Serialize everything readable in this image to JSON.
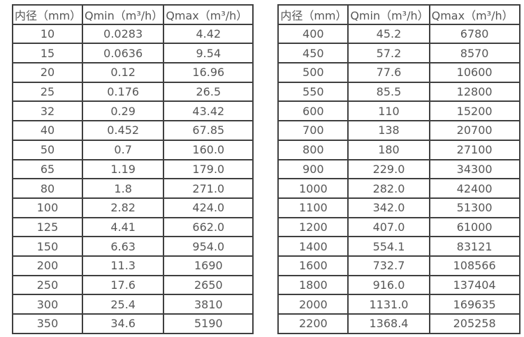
{
  "colors": {
    "background": "#ffffff",
    "border": "#3f3f3f",
    "text": "#575757"
  },
  "tables": [
    {
      "name": "flow-table-small-diameters",
      "headers": [
        "内径（mm）",
        "Qmin（m³/h）",
        "Qmax（m³/h）"
      ],
      "rows": [
        [
          "10",
          "0.0283",
          "4.42"
        ],
        [
          "15",
          "0.0636",
          "9.54"
        ],
        [
          "20",
          "0.12",
          "16.96"
        ],
        [
          "25",
          "0.176",
          "26.5"
        ],
        [
          "32",
          "0.29",
          "43.42"
        ],
        [
          "40",
          "0.452",
          "67.85"
        ],
        [
          "50",
          "0.7",
          "160.0"
        ],
        [
          "65",
          "1.19",
          "179.0"
        ],
        [
          "80",
          "1.8",
          "271.0"
        ],
        [
          "100",
          "2.82",
          "424.0"
        ],
        [
          "125",
          "4.41",
          "662.0"
        ],
        [
          "150",
          "6.63",
          "954.0"
        ],
        [
          "200",
          "11.3",
          "1690"
        ],
        [
          "250",
          "17.6",
          "2650"
        ],
        [
          "300",
          "25.4",
          "3810"
        ],
        [
          "350",
          "34.6",
          "5190"
        ]
      ]
    },
    {
      "name": "flow-table-large-diameters",
      "headers": [
        "内径（mm）",
        "Qmin（m³/h）",
        "Qmax（m³/h）"
      ],
      "rows": [
        [
          "400",
          "45.2",
          "6780"
        ],
        [
          "450",
          "57.2",
          "8570"
        ],
        [
          "500",
          "77.6",
          "10600"
        ],
        [
          "550",
          "85.5",
          "12800"
        ],
        [
          "600",
          "110",
          "15200"
        ],
        [
          "700",
          "138",
          "20700"
        ],
        [
          "800",
          "180",
          "27100"
        ],
        [
          "900",
          "229.0",
          "34300"
        ],
        [
          "1000",
          "282.0",
          "42400"
        ],
        [
          "1100",
          "342.0",
          "51300"
        ],
        [
          "1200",
          "407.0",
          "61000"
        ],
        [
          "1400",
          "554.1",
          "83121"
        ],
        [
          "1600",
          "732.7",
          "108566"
        ],
        [
          "1800",
          "916.0",
          "137404"
        ],
        [
          "2000",
          "1131.0",
          "169635"
        ],
        [
          "2200",
          "1368.4",
          "205258"
        ]
      ]
    }
  ]
}
